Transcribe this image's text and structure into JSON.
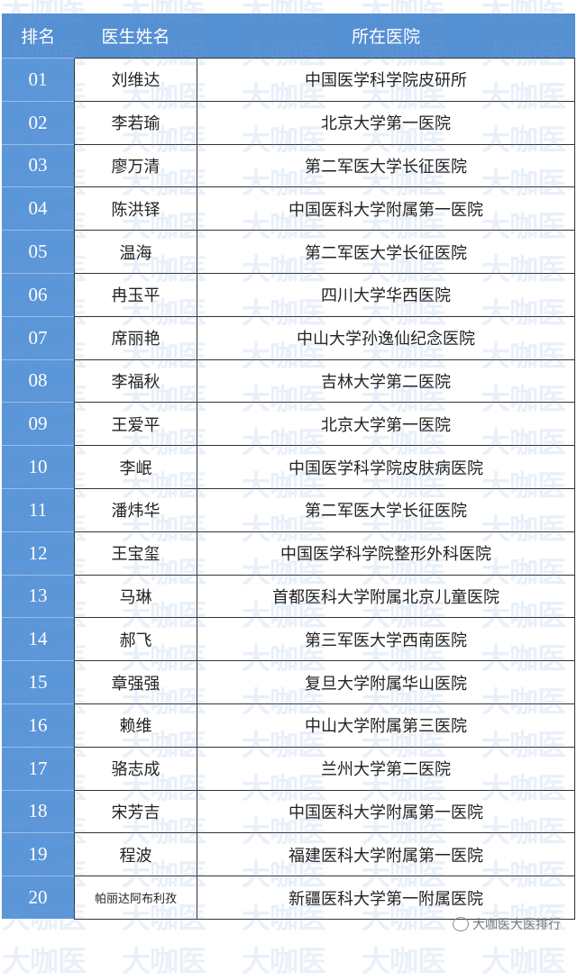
{
  "watermark": "大咖医",
  "header": {
    "rank": "排名",
    "name": "医生姓名",
    "hospital": "所在医院"
  },
  "colors": {
    "header_bg": "#5590d3",
    "rank_bg": "#5b96d8"
  },
  "rows": [
    {
      "rank": "01",
      "name": "刘维达",
      "hospital": "中国医学科学院皮研所"
    },
    {
      "rank": "02",
      "name": "李若瑜",
      "hospital": "北京大学第一医院"
    },
    {
      "rank": "03",
      "name": "廖万清",
      "hospital": "第二军医大学长征医院"
    },
    {
      "rank": "04",
      "name": "陈洪铎",
      "hospital": "中国医科大学附属第一医院"
    },
    {
      "rank": "05",
      "name": "温海",
      "hospital": "第二军医大学长征医院"
    },
    {
      "rank": "06",
      "name": "冉玉平",
      "hospital": "四川大学华西医院"
    },
    {
      "rank": "07",
      "name": "席丽艳",
      "hospital": "中山大学孙逸仙纪念医院"
    },
    {
      "rank": "08",
      "name": "李福秋",
      "hospital": "吉林大学第二医院"
    },
    {
      "rank": "09",
      "name": "王爱平",
      "hospital": "北京大学第一医院"
    },
    {
      "rank": "10",
      "name": "李岷",
      "hospital": "中国医学科学院皮肤病医院"
    },
    {
      "rank": "11",
      "name": "潘炜华",
      "hospital": "第二军医大学长征医院"
    },
    {
      "rank": "12",
      "name": "王宝玺",
      "hospital": "中国医学科学院整形外科医院"
    },
    {
      "rank": "13",
      "name": "马琳",
      "hospital": "首都医科大学附属北京儿童医院"
    },
    {
      "rank": "14",
      "name": "郝飞",
      "hospital": "第三军医大学西南医院"
    },
    {
      "rank": "15",
      "name": "章强强",
      "hospital": "复旦大学附属华山医院"
    },
    {
      "rank": "16",
      "name": "赖维",
      "hospital": "中山大学附属第三医院"
    },
    {
      "rank": "17",
      "name": "骆志成",
      "hospital": "兰州大学第二医院"
    },
    {
      "rank": "18",
      "name": "宋芳吉",
      "hospital": "中国医科大学附属第一医院"
    },
    {
      "rank": "19",
      "name": "程波",
      "hospital": "福建医科大学附属第一医院"
    },
    {
      "rank": "20",
      "name": "帕丽达阿布利孜",
      "hospital": "新疆医科大学第一附属医院"
    }
  ],
  "footer": {
    "source": "大咖医大医排行",
    "icon": "wechat-icon"
  }
}
